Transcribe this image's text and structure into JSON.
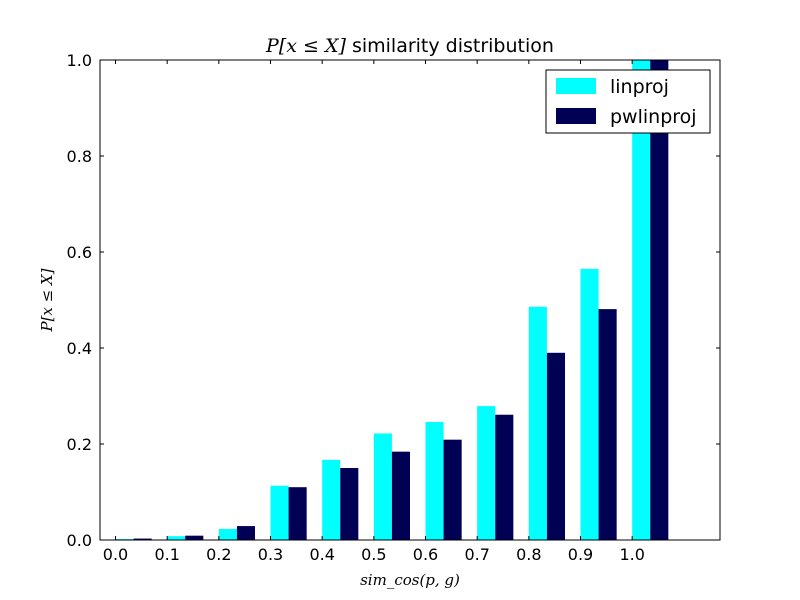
{
  "chart_data": {
    "type": "bar",
    "title_math": "P[x ≤ X]",
    "title_text": " similarity distribution",
    "xlabel": "sim_cos(p, g)",
    "ylabel": "P[x ≤ X]",
    "categories": [
      "0.0",
      "0.1",
      "0.2",
      "0.3",
      "0.4",
      "0.5",
      "0.6",
      "0.7",
      "0.8",
      "0.9",
      "1.0"
    ],
    "series": [
      {
        "name": "linproj",
        "color": "#00ffff",
        "values": [
          0.002,
          0.008,
          0.023,
          0.113,
          0.167,
          0.222,
          0.246,
          0.279,
          0.486,
          0.565,
          1.0
        ]
      },
      {
        "name": "pwlinproj",
        "color": "#000055",
        "values": [
          0.003,
          0.009,
          0.029,
          0.11,
          0.15,
          0.184,
          0.209,
          0.261,
          0.39,
          0.481,
          1.0
        ]
      }
    ],
    "xlim": [
      -0.03,
      1.17
    ],
    "ylim": [
      0.0,
      1.0
    ],
    "yticks": [
      "0.0",
      "0.2",
      "0.4",
      "0.6",
      "0.8",
      "1.0"
    ],
    "grid": false,
    "legend_position": "top-right"
  }
}
